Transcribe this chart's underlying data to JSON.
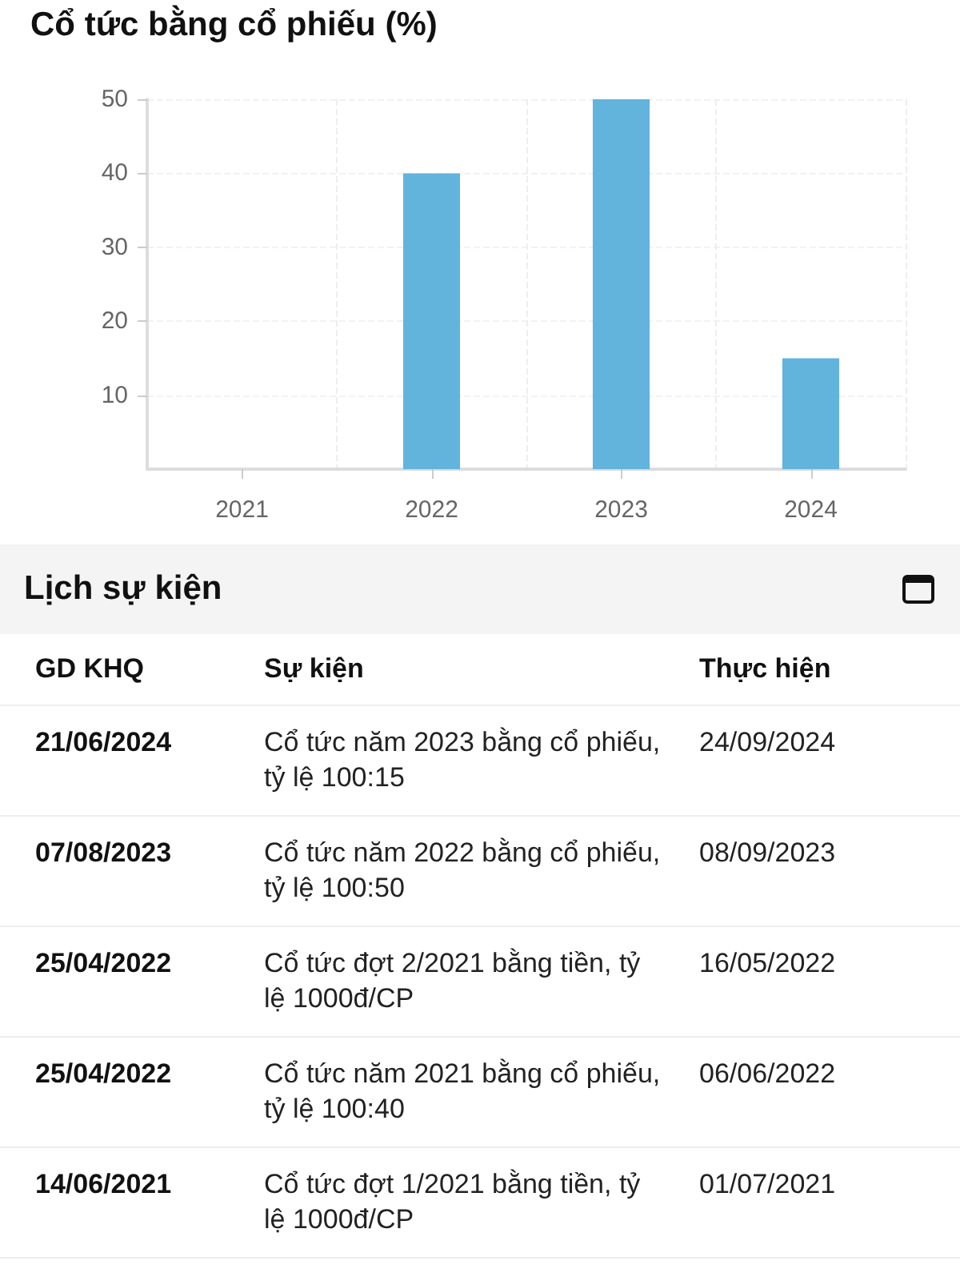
{
  "chart_data": [
    {
      "type": "bar",
      "title": "Cổ tức bằng cổ phiếu (%)",
      "categories": [
        "2021",
        "2022",
        "2023",
        "2024"
      ],
      "values": [
        0,
        40,
        50,
        15
      ],
      "color": "#62b4dc",
      "ylim": [
        0,
        50
      ],
      "yticks": [
        10,
        20,
        30,
        40,
        50
      ],
      "grid": true
    },
    {
      "type": "other",
      "title": "Lịch sự kiện",
      "annotations": [
        "GD KHQ",
        "Sự kiện",
        "Thực hiện",
        "21/06/2024",
        "Cổ tức năm 2023 bằng cổ phiếu, tỷ lệ 100:15",
        "24/09/2024",
        "07/08/2023",
        "Cổ tức năm 2022 bằng cổ phiếu, tỷ lệ 100:50",
        "08/09/2023",
        "25/04/2022",
        "Cổ tức đợt 2/2021 bằng tiền, tỷ lệ 1000đ/CP",
        "16/05/2022",
        "25/04/2022",
        "Cổ tức năm 2021 bằng cổ phiếu, tỷ lệ 100:40",
        "06/06/2022",
        "14/06/2021",
        "Cổ tức đợt 1/2021 bằng tiền, tỷ lệ 1000đ/CP",
        "01/07/2021"
      ]
    }
  ]
}
